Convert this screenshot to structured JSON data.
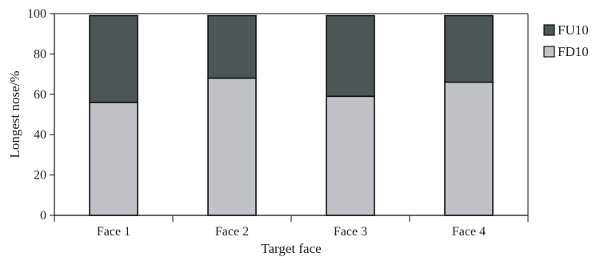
{
  "chart_data": {
    "type": "bar",
    "stacked": true,
    "categories": [
      "Face 1",
      "Face 2",
      "Face 3",
      "Face 4"
    ],
    "series": [
      {
        "name": "FD10",
        "values": [
          56,
          68,
          59,
          66
        ],
        "color": "#c0c2c8"
      },
      {
        "name": "FU10",
        "values": [
          43,
          31,
          40,
          33
        ],
        "color": "#4d5656"
      }
    ],
    "xlabel": "Target face",
    "ylabel": "Longest nose/%",
    "ylim": [
      0,
      100
    ],
    "yticks": [
      0,
      20,
      40,
      60,
      80,
      100
    ],
    "grid": false,
    "legend_position": "right"
  }
}
